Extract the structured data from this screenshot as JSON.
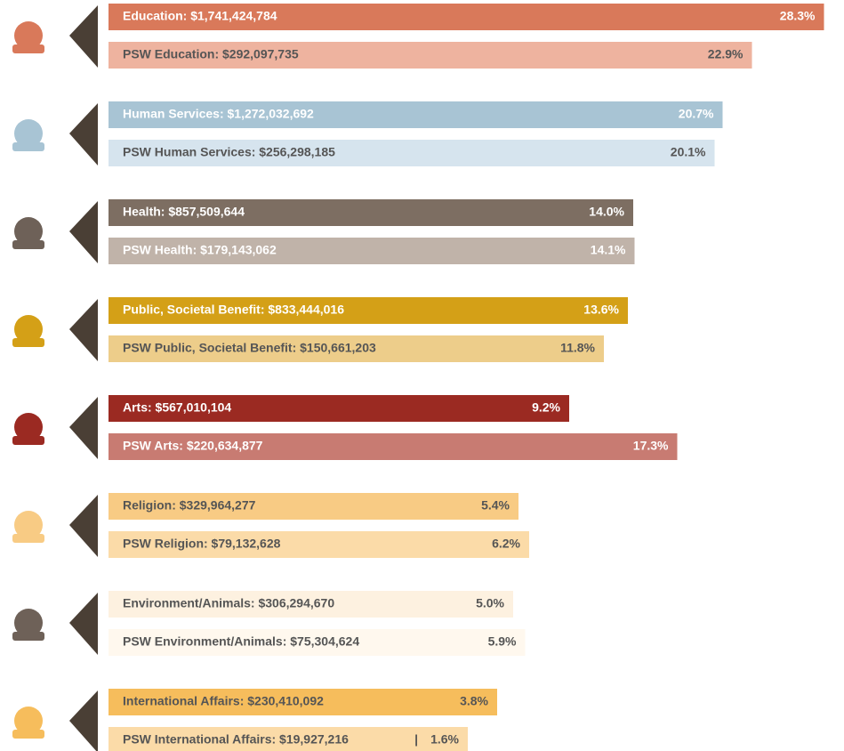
{
  "chart_data": {
    "type": "paired-bar",
    "rows": [
      {
        "icon_color": "#d9795a",
        "total": {
          "label": "Education: $1,741,424,784",
          "percent": 28.3,
          "percent_label": "28.3%",
          "color": "#d9795a",
          "text_color": "#ffffff"
        },
        "psw": {
          "label": "PSW Education: $292,097,735",
          "percent": 22.9,
          "percent_label": "22.9%",
          "color": "#eeb39f",
          "text_color": "#555555"
        }
      },
      {
        "icon_color": "#a8c4d4",
        "total": {
          "label": "Human Services: $1,272,032,692",
          "percent": 20.7,
          "percent_label": "20.7%",
          "color": "#a8c4d4",
          "text_color": "#ffffff"
        },
        "psw": {
          "label": "PSW Human Services: $256,298,185",
          "percent": 20.1,
          "percent_label": "20.1%",
          "color": "#d6e4ee",
          "text_color": "#555555"
        }
      },
      {
        "icon_color": "#6e6158",
        "total": {
          "label": "Health: $857,509,644",
          "percent": 14.0,
          "percent_label": "14.0%",
          "color": "#7d6e62",
          "text_color": "#ffffff"
        },
        "psw": {
          "label": "PSW Health: $179,143,062",
          "percent": 14.1,
          "percent_label": "14.1%",
          "color": "#c0b3a9",
          "text_color": "#ffffff"
        }
      },
      {
        "icon_color": "#d4a017",
        "total": {
          "label": "Public, Societal Benefit: $833,444,016",
          "percent": 13.6,
          "percent_label": "13.6%",
          "color": "#d4a017",
          "text_color": "#ffffff"
        },
        "psw": {
          "label": "PSW Public, Societal Benefit: $150,661,203",
          "percent": 11.8,
          "percent_label": "11.8%",
          "color": "#edcd8a",
          "text_color": "#555555"
        }
      },
      {
        "icon_color": "#9b2a22",
        "total": {
          "label": "Arts: $567,010,104",
          "percent": 9.2,
          "percent_label": "9.2%",
          "color": "#9b2a22",
          "text_color": "#ffffff"
        },
        "psw": {
          "label": "PSW Arts: $220,634,877",
          "percent": 17.3,
          "percent_label": "17.3%",
          "color": "#c87b72",
          "text_color": "#ffffff"
        }
      },
      {
        "icon_color": "#f8cb84",
        "total": {
          "label": "Religion: $329,964,277",
          "percent": 5.4,
          "percent_label": "5.4%",
          "color": "#f8cb84",
          "text_color": "#555555"
        },
        "psw": {
          "label": "PSW Religion: $79,132,628",
          "percent": 6.2,
          "percent_label": "6.2%",
          "color": "#fbdba8",
          "text_color": "#555555"
        }
      },
      {
        "icon_color": "#6e6158",
        "total": {
          "label": "Environment/Animals: $306,294,670",
          "percent": 5.0,
          "percent_label": "5.0%",
          "color": "#fdf1e0",
          "text_color": "#555555"
        },
        "psw": {
          "label": "PSW Environment/Animals: $75,304,624",
          "percent": 5.9,
          "percent_label": "5.9%",
          "color": "#fff8ee",
          "text_color": "#555555"
        }
      },
      {
        "icon_color": "#f6bd5c",
        "total": {
          "label": "International Affairs: $230,410,092",
          "percent": 3.8,
          "percent_label": "3.8%",
          "color": "#f6bd5c",
          "text_color": "#555555"
        },
        "psw": {
          "label": "PSW International Affairs: $19,927,216",
          "separator": "|",
          "percent": 1.6,
          "percent_label": "1.6%",
          "color": "#fbdba8",
          "text_color": "#555555"
        }
      }
    ]
  }
}
